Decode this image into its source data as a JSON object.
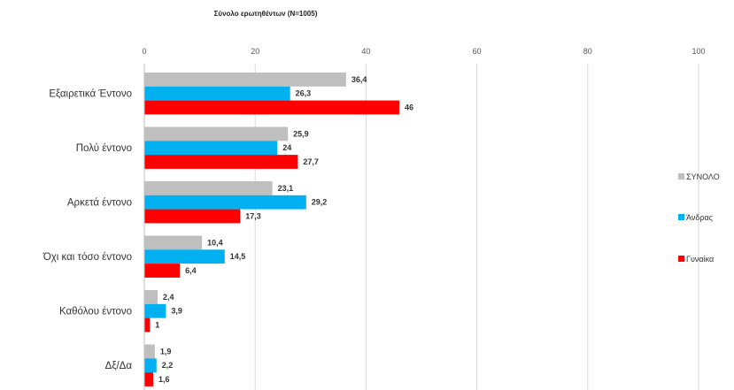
{
  "chart_data": {
    "type": "bar",
    "orientation": "horizontal",
    "subtitle": "Σύνολο ερωτηθέντων (N=1005)",
    "categories": [
      "Εξαιρετικά Έντονο",
      "Πολύ έντονο",
      "Αρκετά έντονο",
      "Όχι και τόσο έντονο",
      "Καθόλου έντονο",
      "Δξ/Δα"
    ],
    "series": [
      {
        "name": "ΣΥΝΟΛΟ",
        "color": "#bfbfbf",
        "values": [
          36.4,
          25.9,
          23.1,
          10.4,
          2.4,
          1.9
        ],
        "labels": [
          "36,4",
          "25,9",
          "23,1",
          "10,4",
          "2,4",
          "1,9"
        ]
      },
      {
        "name": "Άνδρας",
        "color": "#00b0f0",
        "values": [
          26.3,
          24,
          29.2,
          14.5,
          3.9,
          2.2
        ],
        "labels": [
          "26,3",
          "24",
          "29,2",
          "14,5",
          "3,9",
          "2,2"
        ]
      },
      {
        "name": "Γυναίκα",
        "color": "#ff0000",
        "values": [
          46,
          27.7,
          17.3,
          6.4,
          1,
          1.6
        ],
        "labels": [
          "46",
          "27,7",
          "17,3",
          "6,4",
          "1",
          "1,6"
        ]
      }
    ],
    "xlim": [
      0,
      100
    ],
    "xticks": [
      "0",
      "20",
      "40",
      "60",
      "80",
      "100"
    ],
    "grid": true,
    "axis_position": "top",
    "legend_position": "right"
  }
}
